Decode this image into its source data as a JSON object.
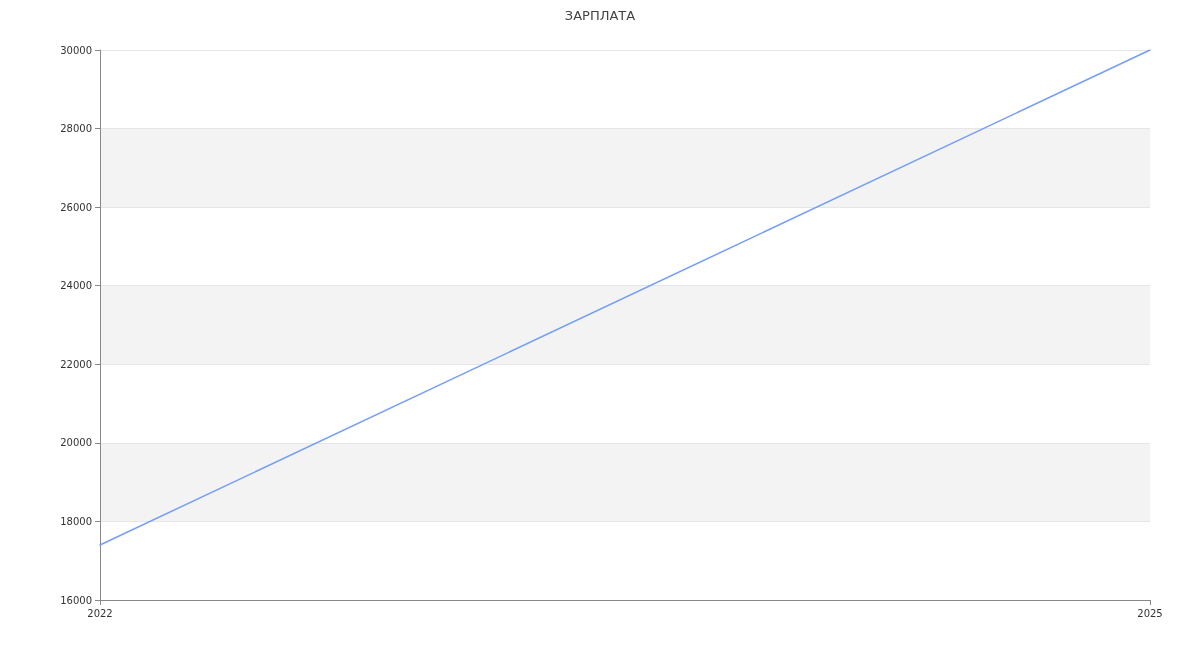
{
  "chart_data": {
    "type": "line",
    "title": "ЗАРПЛАТА",
    "x": [
      2022,
      2025
    ],
    "series": [
      {
        "color": "#749ef5",
        "values": [
          17400,
          30000
        ]
      }
    ],
    "xlim": [
      2022,
      2025
    ],
    "xticks": [
      2022,
      2025
    ],
    "ylim": [
      16000,
      30000
    ],
    "yticks": [
      16000,
      18000,
      20000,
      22000,
      24000,
      26000,
      28000,
      30000
    ],
    "grid": "y",
    "marker": "none",
    "line_style": "solid"
  }
}
